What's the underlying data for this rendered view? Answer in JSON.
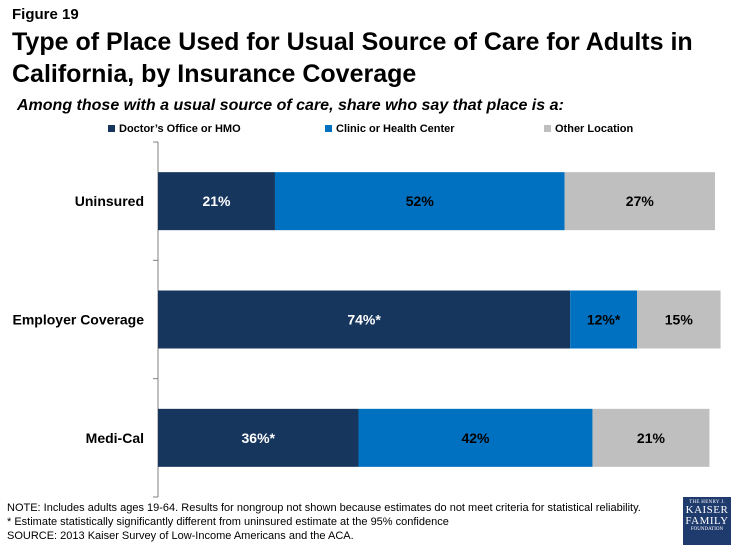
{
  "figure_label": "Figure 19",
  "colors": {
    "doctor": "#17365d",
    "clinic": "#0070c0",
    "other": "#bfbfbf",
    "axis": "#808080"
  },
  "chart_data": {
    "type": "bar",
    "orientation": "horizontal",
    "stacked": true,
    "title": "Type of Place Used for Usual Source of Care for Adults in California, by Insurance Coverage",
    "subtitle": "Among those with a usual source of care, share who say that place is a:",
    "legend_position": "top",
    "categories": [
      "Uninsured",
      "Employer Coverage",
      "Medi-Cal"
    ],
    "series": [
      {
        "name": "Doctor’s Office or HMO",
        "color_key": "doctor",
        "values": [
          21,
          74,
          36
        ],
        "labels": [
          "21%",
          "74%*",
          "36%*"
        ],
        "label_color": "#ffffff"
      },
      {
        "name": "Clinic or Health Center",
        "color_key": "clinic",
        "values": [
          52,
          12,
          42
        ],
        "labels": [
          "52%",
          "12%*",
          "42%"
        ],
        "label_color": "#000000"
      },
      {
        "name": "Other Location",
        "color_key": "other",
        "values": [
          27,
          15,
          21
        ],
        "labels": [
          "27%",
          "15%",
          "21%"
        ],
        "label_color": "#000000"
      }
    ],
    "xlim": [
      0,
      100
    ]
  },
  "notes": [
    "NOTE: Includes adults ages 19-64. Results for nongroup not shown because estimates do not meet criteria for statistical reliability.",
    "* Estimate statistically significantly different from uninsured estimate  at the 95% confidence",
    "SOURCE: 2013 Kaiser Survey of Low-Income Americans and the ACA."
  ],
  "logo": {
    "line1": "THE HENRY J.",
    "line2": "KAISER",
    "line3": "FAMILY",
    "line4": "FOUNDATION"
  }
}
